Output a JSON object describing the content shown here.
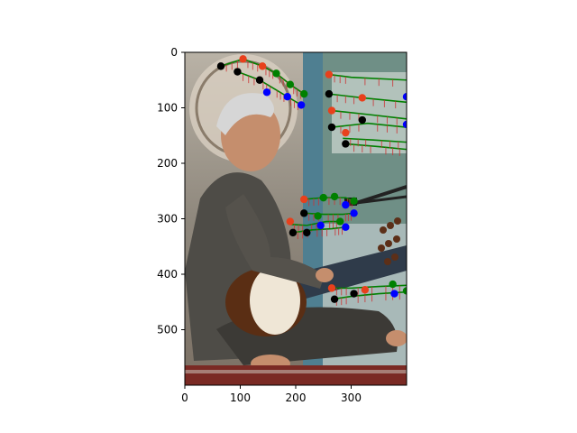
{
  "figure": {
    "background": "#ffffff",
    "photo_description_colors": {
      "sky": "#cfd8dc",
      "wall": "#6f8f86",
      "pillar": "#4f7f91",
      "kurta": "#4e4c47",
      "skin": "#c58e6d",
      "hair": "#d6d6d6",
      "instrument_wood": "#5a2e14",
      "instrument_face": "#efe6d6",
      "rug": "#7a2a24"
    }
  },
  "chart_data": {
    "type": "image_with_keypoints",
    "xlim": [
      0,
      400
    ],
    "ylim": [
      600,
      0
    ],
    "x_ticks": [
      "0",
      "100",
      "200",
      "300"
    ],
    "y_ticks": [
      "0",
      "100",
      "200",
      "300",
      "400",
      "500"
    ],
    "x_tick_values": [
      0,
      100,
      200,
      300
    ],
    "y_tick_values": [
      0,
      100,
      200,
      300,
      400,
      500
    ],
    "colors": {
      "green": "#008000",
      "red": "#e8401c",
      "blue": "#0000ff",
      "black": "#000000",
      "red_line": "#cc3333"
    },
    "polylines_green": [
      [
        [
          65,
          25
        ],
        [
          105,
          12
        ],
        [
          140,
          25
        ],
        [
          165,
          38
        ],
        [
          190,
          58
        ],
        [
          215,
          75
        ]
      ],
      [
        [
          95,
          35
        ],
        [
          135,
          50
        ],
        [
          160,
          65
        ],
        [
          185,
          80
        ],
        [
          210,
          95
        ]
      ],
      [
        [
          260,
          40
        ],
        [
          300,
          45
        ],
        [
          400,
          50
        ]
      ],
      [
        [
          260,
          75
        ],
        [
          320,
          82
        ],
        [
          400,
          90
        ]
      ],
      [
        [
          265,
          105
        ],
        [
          330,
          112
        ],
        [
          400,
          120
        ]
      ],
      [
        [
          265,
          135
        ],
        [
          330,
          128
        ],
        [
          400,
          135
        ]
      ],
      [
        [
          290,
          165
        ],
        [
          350,
          170
        ],
        [
          400,
          175
        ]
      ],
      [
        [
          285,
          155
        ],
        [
          340,
          158
        ],
        [
          400,
          162
        ]
      ],
      [
        [
          215,
          265
        ],
        [
          250,
          262
        ],
        [
          290,
          262
        ],
        [
          305,
          268
        ]
      ],
      [
        [
          215,
          290
        ],
        [
          250,
          292
        ],
        [
          285,
          292
        ],
        [
          305,
          290
        ]
      ],
      [
        [
          190,
          310
        ],
        [
          220,
          312
        ],
        [
          255,
          305
        ],
        [
          280,
          305
        ]
      ],
      [
        [
          195,
          325
        ],
        [
          230,
          320
        ],
        [
          265,
          318
        ],
        [
          290,
          315
        ]
      ],
      [
        [
          265,
          425
        ],
        [
          300,
          425
        ],
        [
          350,
          422
        ],
        [
          400,
          420
        ]
      ],
      [
        [
          265,
          445
        ],
        [
          300,
          440
        ],
        [
          350,
          435
        ],
        [
          400,
          432
        ]
      ]
    ],
    "markers": [
      {
        "x": 65,
        "y": 25,
        "c": "black"
      },
      {
        "x": 105,
        "y": 12,
        "c": "red"
      },
      {
        "x": 95,
        "y": 35,
        "c": "black"
      },
      {
        "x": 135,
        "y": 50,
        "c": "black"
      },
      {
        "x": 140,
        "y": 25,
        "c": "red"
      },
      {
        "x": 165,
        "y": 38,
        "c": "green"
      },
      {
        "x": 148,
        "y": 72,
        "c": "blue"
      },
      {
        "x": 185,
        "y": 80,
        "c": "blue"
      },
      {
        "x": 190,
        "y": 58,
        "c": "green"
      },
      {
        "x": 210,
        "y": 95,
        "c": "blue"
      },
      {
        "x": 215,
        "y": 75,
        "c": "green"
      },
      {
        "x": 260,
        "y": 40,
        "c": "red"
      },
      {
        "x": 260,
        "y": 75,
        "c": "black"
      },
      {
        "x": 320,
        "y": 82,
        "c": "red"
      },
      {
        "x": 400,
        "y": 80,
        "c": "blue"
      },
      {
        "x": 265,
        "y": 105,
        "c": "red"
      },
      {
        "x": 265,
        "y": 135,
        "c": "black"
      },
      {
        "x": 320,
        "y": 122,
        "c": "black"
      },
      {
        "x": 400,
        "y": 130,
        "c": "blue"
      },
      {
        "x": 290,
        "y": 145,
        "c": "red"
      },
      {
        "x": 290,
        "y": 165,
        "c": "black"
      },
      {
        "x": 215,
        "y": 265,
        "c": "red"
      },
      {
        "x": 215,
        "y": 290,
        "c": "black"
      },
      {
        "x": 250,
        "y": 262,
        "c": "green"
      },
      {
        "x": 270,
        "y": 260,
        "c": "green"
      },
      {
        "x": 290,
        "y": 275,
        "c": "blue"
      },
      {
        "x": 305,
        "y": 268,
        "c": "green"
      },
      {
        "x": 305,
        "y": 290,
        "c": "blue"
      },
      {
        "x": 190,
        "y": 305,
        "c": "red"
      },
      {
        "x": 195,
        "y": 325,
        "c": "black"
      },
      {
        "x": 220,
        "y": 325,
        "c": "black"
      },
      {
        "x": 240,
        "y": 295,
        "c": "green"
      },
      {
        "x": 245,
        "y": 312,
        "c": "blue"
      },
      {
        "x": 280,
        "y": 305,
        "c": "green"
      },
      {
        "x": 290,
        "y": 315,
        "c": "blue"
      },
      {
        "x": 265,
        "y": 425,
        "c": "red"
      },
      {
        "x": 270,
        "y": 445,
        "c": "black"
      },
      {
        "x": 305,
        "y": 435,
        "c": "black"
      },
      {
        "x": 325,
        "y": 428,
        "c": "red"
      },
      {
        "x": 375,
        "y": 418,
        "c": "green"
      },
      {
        "x": 378,
        "y": 435,
        "c": "blue"
      },
      {
        "x": 400,
        "y": 430,
        "c": "green"
      }
    ]
  }
}
